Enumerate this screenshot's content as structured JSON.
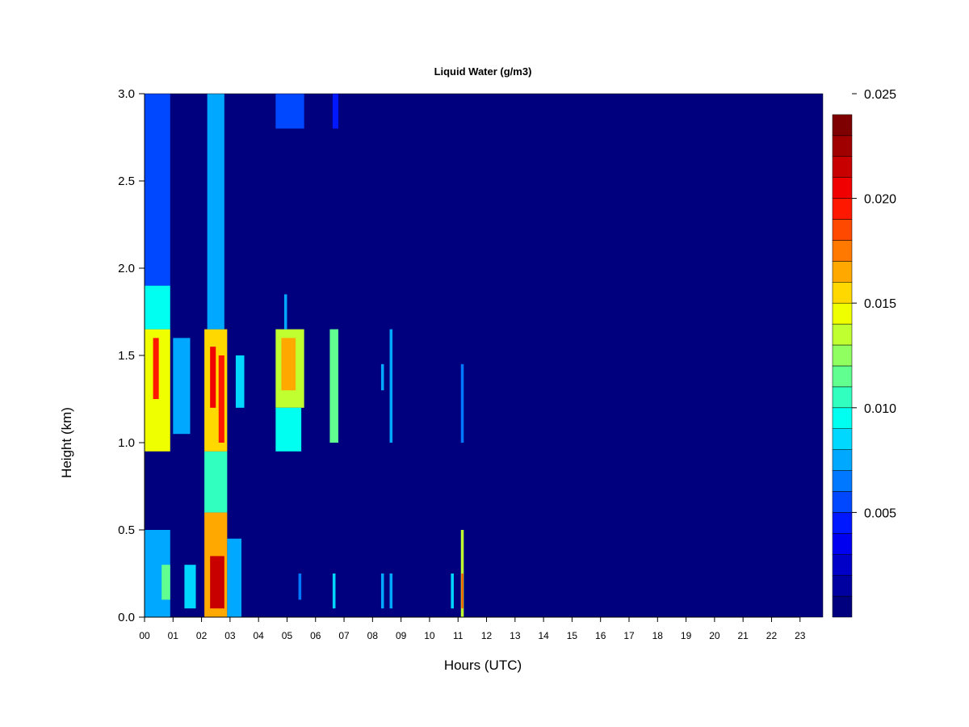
{
  "chart_data": {
    "type": "heatmap",
    "title": "Liquid Water (g/m3)",
    "xlabel": "Hours (UTC)",
    "ylabel": "Height (km)",
    "xlim": [
      0,
      23.8
    ],
    "ylim": [
      0,
      3.0
    ],
    "x_ticks": [
      "00",
      "01",
      "02",
      "03",
      "04",
      "05",
      "06",
      "07",
      "08",
      "09",
      "10",
      "11",
      "12",
      "13",
      "14",
      "15",
      "16",
      "17",
      "18",
      "19",
      "20",
      "21",
      "22",
      "23"
    ],
    "y_ticks": [
      "0.0",
      "0.5",
      "1.0",
      "1.5",
      "2.0",
      "2.5",
      "3.0"
    ],
    "y_tick_values": [
      0,
      0.5,
      1.0,
      1.5,
      2.0,
      2.5,
      3.0
    ],
    "colorbar": {
      "min": 0.001,
      "max": 0.025,
      "step": 0.001,
      "tick_labels": [
        "0.005",
        "0.010",
        "0.015",
        "0.020",
        "0.025"
      ],
      "tick_values": [
        0.005,
        0.01,
        0.015,
        0.02,
        0.025
      ],
      "colors": [
        "#00007F",
        "#0000A0",
        "#0000C8",
        "#0000F0",
        "#0018FF",
        "#0048FF",
        "#0078FF",
        "#00A8FF",
        "#00D8FF",
        "#00FFF0",
        "#30FFC0",
        "#60FF90",
        "#90FF60",
        "#C0FF30",
        "#F0FF00",
        "#FFD800",
        "#FFA800",
        "#FF7800",
        "#FF4800",
        "#FF1800",
        "#F00000",
        "#C80000",
        "#A00000",
        "#7F0000"
      ]
    },
    "background_value": 0.001,
    "features": [
      {
        "t0": 0.0,
        "t1": 0.9,
        "h0": 0.95,
        "h1": 1.65,
        "value": 0.015
      },
      {
        "t0": 0.3,
        "t1": 0.5,
        "h0": 1.25,
        "h1": 1.6,
        "value": 0.02
      },
      {
        "t0": 0.0,
        "t1": 0.9,
        "h0": 1.65,
        "h1": 1.9,
        "value": 0.01
      },
      {
        "t0": 0.0,
        "t1": 0.9,
        "h0": 1.9,
        "h1": 3.0,
        "value": 0.006
      },
      {
        "t0": 0.0,
        "t1": 0.9,
        "h0": 0.0,
        "h1": 0.5,
        "value": 0.008
      },
      {
        "t0": 0.6,
        "t1": 0.9,
        "h0": 0.1,
        "h1": 0.3,
        "value": 0.012
      },
      {
        "t0": 1.0,
        "t1": 1.6,
        "h0": 1.05,
        "h1": 1.6,
        "value": 0.008
      },
      {
        "t0": 1.4,
        "t1": 1.8,
        "h0": 0.05,
        "h1": 0.3,
        "value": 0.009
      },
      {
        "t0": 2.1,
        "t1": 2.9,
        "h0": 0.0,
        "h1": 0.6,
        "value": 0.017
      },
      {
        "t0": 2.3,
        "t1": 2.8,
        "h0": 0.05,
        "h1": 0.35,
        "value": 0.022
      },
      {
        "t0": 2.1,
        "t1": 2.9,
        "h0": 0.6,
        "h1": 0.95,
        "value": 0.011
      },
      {
        "t0": 2.1,
        "t1": 2.9,
        "h0": 0.95,
        "h1": 1.65,
        "value": 0.016
      },
      {
        "t0": 2.3,
        "t1": 2.5,
        "h0": 1.2,
        "h1": 1.55,
        "value": 0.021
      },
      {
        "t0": 2.6,
        "t1": 2.8,
        "h0": 1.0,
        "h1": 1.5,
        "value": 0.02
      },
      {
        "t0": 2.2,
        "t1": 2.8,
        "h0": 1.65,
        "h1": 3.0,
        "value": 0.008
      },
      {
        "t0": 2.9,
        "t1": 3.4,
        "h0": 0.0,
        "h1": 0.45,
        "value": 0.008
      },
      {
        "t0": 3.2,
        "t1": 3.5,
        "h0": 1.2,
        "h1": 1.5,
        "value": 0.009
      },
      {
        "t0": 4.6,
        "t1": 5.6,
        "h0": 1.2,
        "h1": 1.65,
        "value": 0.014
      },
      {
        "t0": 4.8,
        "t1": 5.3,
        "h0": 1.3,
        "h1": 1.6,
        "value": 0.017
      },
      {
        "t0": 4.6,
        "t1": 5.5,
        "h0": 0.95,
        "h1": 1.2,
        "value": 0.01
      },
      {
        "t0": 4.6,
        "t1": 5.6,
        "h0": 2.8,
        "h1": 3.0,
        "value": 0.006
      },
      {
        "t0": 4.9,
        "t1": 5.0,
        "h0": 1.65,
        "h1": 1.85,
        "value": 0.008
      },
      {
        "t0": 5.4,
        "t1": 5.5,
        "h0": 0.1,
        "h1": 0.25,
        "value": 0.007
      },
      {
        "t0": 6.5,
        "t1": 6.8,
        "h0": 1.0,
        "h1": 1.65,
        "value": 0.012
      },
      {
        "t0": 6.6,
        "t1": 6.7,
        "h0": 0.05,
        "h1": 0.25,
        "value": 0.009
      },
      {
        "t0": 6.6,
        "t1": 6.8,
        "h0": 2.8,
        "h1": 3.0,
        "value": 0.005
      },
      {
        "t0": 8.3,
        "t1": 8.4,
        "h0": 0.05,
        "h1": 0.25,
        "value": 0.008
      },
      {
        "t0": 8.3,
        "t1": 8.4,
        "h0": 1.3,
        "h1": 1.45,
        "value": 0.008
      },
      {
        "t0": 8.6,
        "t1": 8.7,
        "h0": 0.05,
        "h1": 0.25,
        "value": 0.008
      },
      {
        "t0": 8.6,
        "t1": 8.7,
        "h0": 1.0,
        "h1": 1.65,
        "value": 0.008
      },
      {
        "t0": 10.75,
        "t1": 10.85,
        "h0": 0.05,
        "h1": 0.25,
        "value": 0.009
      },
      {
        "t0": 11.1,
        "t1": 11.2,
        "h0": 0.0,
        "h1": 0.5,
        "value": 0.014
      },
      {
        "t0": 11.12,
        "t1": 11.18,
        "h0": 0.05,
        "h1": 0.25,
        "value": 0.019
      },
      {
        "t0": 11.1,
        "t1": 11.2,
        "h0": 1.0,
        "h1": 1.45,
        "value": 0.007
      }
    ]
  }
}
